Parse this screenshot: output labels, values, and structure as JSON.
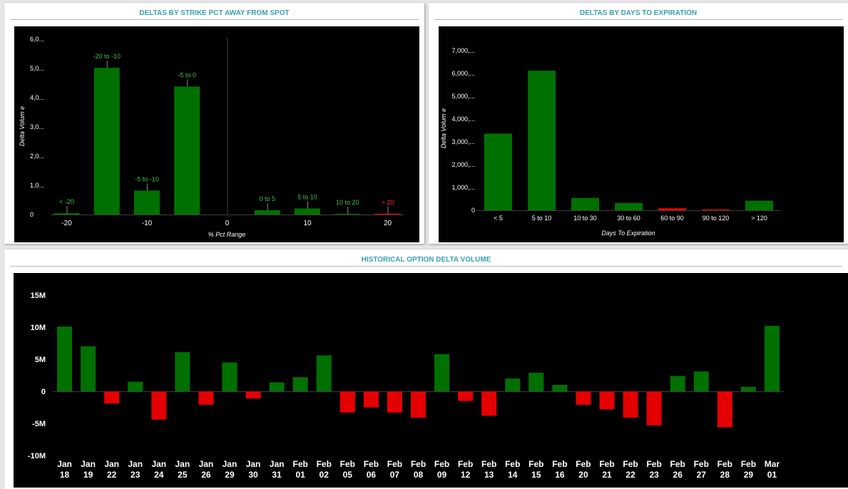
{
  "colors": {
    "positive": "#007000",
    "negative": "#e40000",
    "title": "#3aa0b0",
    "label_pos": "#44c244",
    "label_neg": "#ff3030"
  },
  "chart_data": [
    {
      "type": "bar",
      "title": "DELTAS BY STRIKE PCT AWAY FROM SPOT",
      "xlabel": "% Pct Range",
      "ylabel": "Delta Volum e",
      "yticks": [
        "6,0...",
        "5,0...",
        "4,0...",
        "3,0...",
        "2,0...",
        "1,0...",
        "0"
      ],
      "ytick_values": [
        6000,
        5000,
        4000,
        3000,
        2000,
        1000,
        0
      ],
      "xticks": [
        "-20",
        "-10",
        "0",
        "10",
        "20"
      ],
      "xtick_values": [
        -20,
        -10,
        0,
        10,
        20
      ],
      "xlim": [
        -22,
        22
      ],
      "ylim": [
        0,
        6000
      ],
      "categories": [
        "< -20",
        "-20 to -10",
        "-5 to -10",
        "-5 to 0",
        "0 to 5",
        "5 to 10",
        "10 to 20",
        "> 20"
      ],
      "x": [
        -20,
        -15,
        -10,
        -5,
        5,
        10,
        15,
        20
      ],
      "values": [
        45,
        5020,
        820,
        4380,
        150,
        210,
        20,
        30
      ],
      "sign": [
        "pos",
        "pos",
        "pos",
        "pos",
        "pos",
        "pos",
        "pos",
        "neg"
      ],
      "divider_x": 0
    },
    {
      "type": "bar",
      "title": "DELTAS BY DAYS TO EXPIRATION",
      "xlabel": "Days To Expiration",
      "ylabel": "Delta Volum e",
      "yticks": [
        "7,000,...",
        "6,000,...",
        "5,000,...",
        "4,000,...",
        "3,000,...",
        "2,000,...",
        "1,000,...",
        "0"
      ],
      "ytick_values": [
        7000,
        6000,
        5000,
        4000,
        3000,
        2000,
        1000,
        0
      ],
      "ylim": [
        0,
        7000
      ],
      "categories": [
        "< 5",
        "5 to 10",
        "10 to 30",
        "30 to 60",
        "60 to 90",
        "90 to 120",
        "> 120"
      ],
      "values": [
        3360,
        6120,
        540,
        320,
        90,
        40,
        420
      ],
      "sign": [
        "pos",
        "pos",
        "pos",
        "pos",
        "neg",
        "neg",
        "pos"
      ]
    },
    {
      "type": "bar",
      "title": "HISTORICAL OPTION DELTA VOLUME",
      "yticks": [
        "15M",
        "10M",
        "5M",
        "0",
        "-5M",
        "-10M"
      ],
      "ytick_values": [
        15,
        10,
        5,
        0,
        -5,
        -10
      ],
      "ylim": [
        -10,
        15
      ],
      "categories": [
        [
          "Jan",
          "18"
        ],
        [
          "Jan",
          "19"
        ],
        [
          "Jan",
          "22"
        ],
        [
          "Jan",
          "23"
        ],
        [
          "Jan",
          "24"
        ],
        [
          "Jan",
          "25"
        ],
        [
          "Jan",
          "26"
        ],
        [
          "Jan",
          "29"
        ],
        [
          "Jan",
          "30"
        ],
        [
          "Jan",
          "31"
        ],
        [
          "Feb",
          "01"
        ],
        [
          "Feb",
          "02"
        ],
        [
          "Feb",
          "05"
        ],
        [
          "Feb",
          "06"
        ],
        [
          "Feb",
          "07"
        ],
        [
          "Feb",
          "08"
        ],
        [
          "Feb",
          "09"
        ],
        [
          "Feb",
          "12"
        ],
        [
          "Feb",
          "13"
        ],
        [
          "Feb",
          "14"
        ],
        [
          "Feb",
          "15"
        ],
        [
          "Feb",
          "16"
        ],
        [
          "Feb",
          "20"
        ],
        [
          "Feb",
          "21"
        ],
        [
          "Feb",
          "22"
        ],
        [
          "Feb",
          "23"
        ],
        [
          "Feb",
          "26"
        ],
        [
          "Feb",
          "27"
        ],
        [
          "Feb",
          "28"
        ],
        [
          "Feb",
          "29"
        ],
        [
          "Mar",
          "01"
        ]
      ],
      "values": [
        10.1,
        7.0,
        -1.9,
        1.5,
        -4.4,
        6.1,
        -2.1,
        4.5,
        -1.1,
        1.4,
        2.2,
        5.6,
        -3.3,
        -2.5,
        -3.3,
        -4.1,
        5.8,
        -1.5,
        -3.8,
        2.0,
        2.9,
        1.0,
        -2.1,
        -2.8,
        -4.1,
        -5.3,
        2.4,
        3.1,
        -5.6,
        0.7,
        10.2
      ]
    }
  ]
}
